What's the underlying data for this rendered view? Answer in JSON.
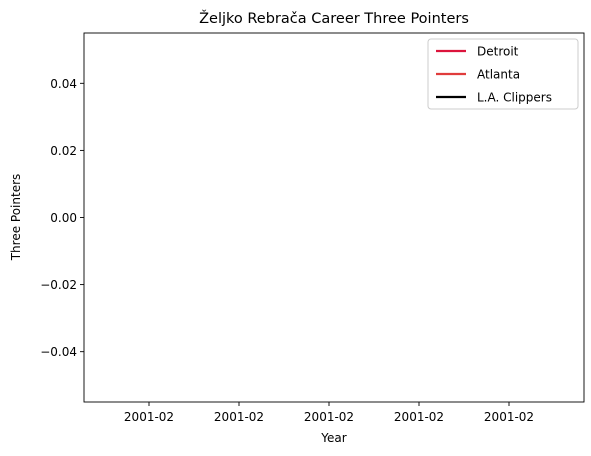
{
  "chart_data": {
    "type": "line",
    "title": "Željko Rebrača Career Three Pointers",
    "xlabel": "Year",
    "ylabel": "Three Pointers",
    "x_tick_labels": [
      "2001-02",
      "2001-02",
      "2001-02",
      "2001-02",
      "2001-02"
    ],
    "y_tick_labels": [
      "0.04",
      "0.02",
      "0.00",
      "−0.02",
      "−0.04"
    ],
    "y_ticks": [
      0.04,
      0.02,
      0.0,
      -0.02,
      -0.04
    ],
    "ylim": [
      -0.055,
      0.055
    ],
    "grid": false,
    "legend_position": "top-right",
    "series": [
      {
        "name": "Detroit",
        "color": "#dc143c",
        "x": [],
        "y": []
      },
      {
        "name": "Atlanta",
        "color": "#e03c3c",
        "x": [],
        "y": []
      },
      {
        "name": "L.A. Clippers",
        "color": "#000000",
        "x": [],
        "y": []
      }
    ]
  }
}
